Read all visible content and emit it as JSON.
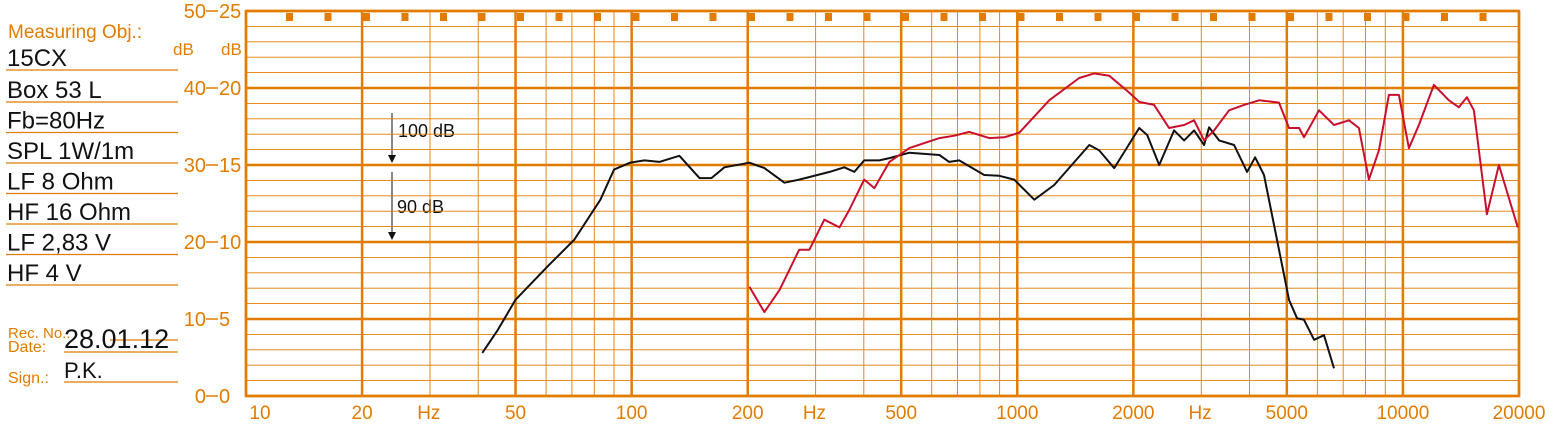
{
  "info": {
    "measuring_obj": "Measuring Obj.:",
    "lines": [
      "15CX",
      "Box 53 L",
      "Fb=80Hz",
      "SPL 1W/1m",
      "LF 8 Ohm",
      "HF 16 Ohm",
      "LF 2,83 V",
      "HF 4 V"
    ],
    "rec_no": "Rec.  No.:",
    "date_label": "Date:",
    "date": "28.01.12",
    "sign_label": "Sign.:",
    "sign": "P.K."
  },
  "chart_data": {
    "type": "line",
    "xscale": "log",
    "grid": true,
    "grid_color": "#e27c00",
    "ylabel": "dB",
    "y2label": "dB",
    "xlabel": "Hz",
    "xlim": [
      10,
      20000
    ],
    "xticks": [
      10,
      20,
      50,
      100,
      200,
      500,
      1000,
      2000,
      5000,
      10000,
      20000
    ],
    "ylim": [
      0,
      50
    ],
    "yticks": [
      0,
      10,
      20,
      30,
      40,
      50
    ],
    "y2lim": [
      0,
      25
    ],
    "y2ticks": [
      0,
      5,
      10,
      15,
      20,
      25
    ],
    "annotations": [
      "100 dB",
      "90 dB"
    ],
    "series": [
      {
        "color": "#111111",
        "x": [
          41,
          45,
          50,
          61,
          71,
          83,
          90,
          99,
          108,
          118,
          129,
          133,
          150,
          161,
          174,
          202,
          221,
          249,
          272,
          326,
          356,
          378,
          401,
          439,
          466,
          525,
          628,
          666,
          707,
          821,
          898,
          982,
          1107,
          1247,
          1537,
          1631,
          1784,
          2071,
          2172,
          2333,
          2551,
          2707,
          2874,
          3051,
          3143,
          3337,
          3650,
          3944,
          4136,
          4364,
          4773,
          5066,
          5314,
          5540,
          5883,
          6243,
          6627
        ],
        "values": [
          5.6,
          8.6,
          12.5,
          17.0,
          20.3,
          25.5,
          29.4,
          30.3,
          30.6,
          30.4,
          31.0,
          31.2,
          28.3,
          28.3,
          29.7,
          30.3,
          29.6,
          27.7,
          28.1,
          29.1,
          29.7,
          29.1,
          30.6,
          30.6,
          30.9,
          31.6,
          31.3,
          30.4,
          30.6,
          28.7,
          28.6,
          28.1,
          25.5,
          27.4,
          32.6,
          31.9,
          29.6,
          34.8,
          33.9,
          30.0,
          34.5,
          33.2,
          34.5,
          32.6,
          34.9,
          33.2,
          32.6,
          29.1,
          31.0,
          28.7,
          19.0,
          12.5,
          10.1,
          9.9,
          7.3,
          7.9,
          3.6
        ]
      },
      {
        "color": "#c8102e",
        "x": [
          202,
          221,
          242,
          272,
          289,
          316,
          346,
          367,
          401,
          426,
          466,
          525,
          628,
          687,
          751,
          846,
          925,
          1012,
          1210,
          1447,
          1583,
          1731,
          1951,
          2071,
          2264,
          2476,
          2707,
          2874,
          3051,
          3239,
          3542,
          3873,
          4237,
          4773,
          5066,
          5379,
          5540,
          6058,
          6627,
          7247,
          7691,
          8164,
          8666,
          9198,
          9763,
          10363,
          11000,
          12030,
          13160,
          13970,
          14650,
          15280,
          16510,
          17740,
          19860
        ],
        "values": [
          14.2,
          10.9,
          13.8,
          19.0,
          19.0,
          22.9,
          21.9,
          24.2,
          28.1,
          27.0,
          30.4,
          32.2,
          33.5,
          33.8,
          34.3,
          33.5,
          33.6,
          34.2,
          38.4,
          41.3,
          41.9,
          41.6,
          39.4,
          38.2,
          37.8,
          34.8,
          35.2,
          35.8,
          33.2,
          34.5,
          37.1,
          37.8,
          38.4,
          38.1,
          34.8,
          34.8,
          33.6,
          37.1,
          35.2,
          35.8,
          34.8,
          28.1,
          31.9,
          39.1,
          39.1,
          32.2,
          35.2,
          40.4,
          38.4,
          37.5,
          38.8,
          37.1,
          23.6,
          30.0,
          21.9
        ]
      }
    ]
  }
}
